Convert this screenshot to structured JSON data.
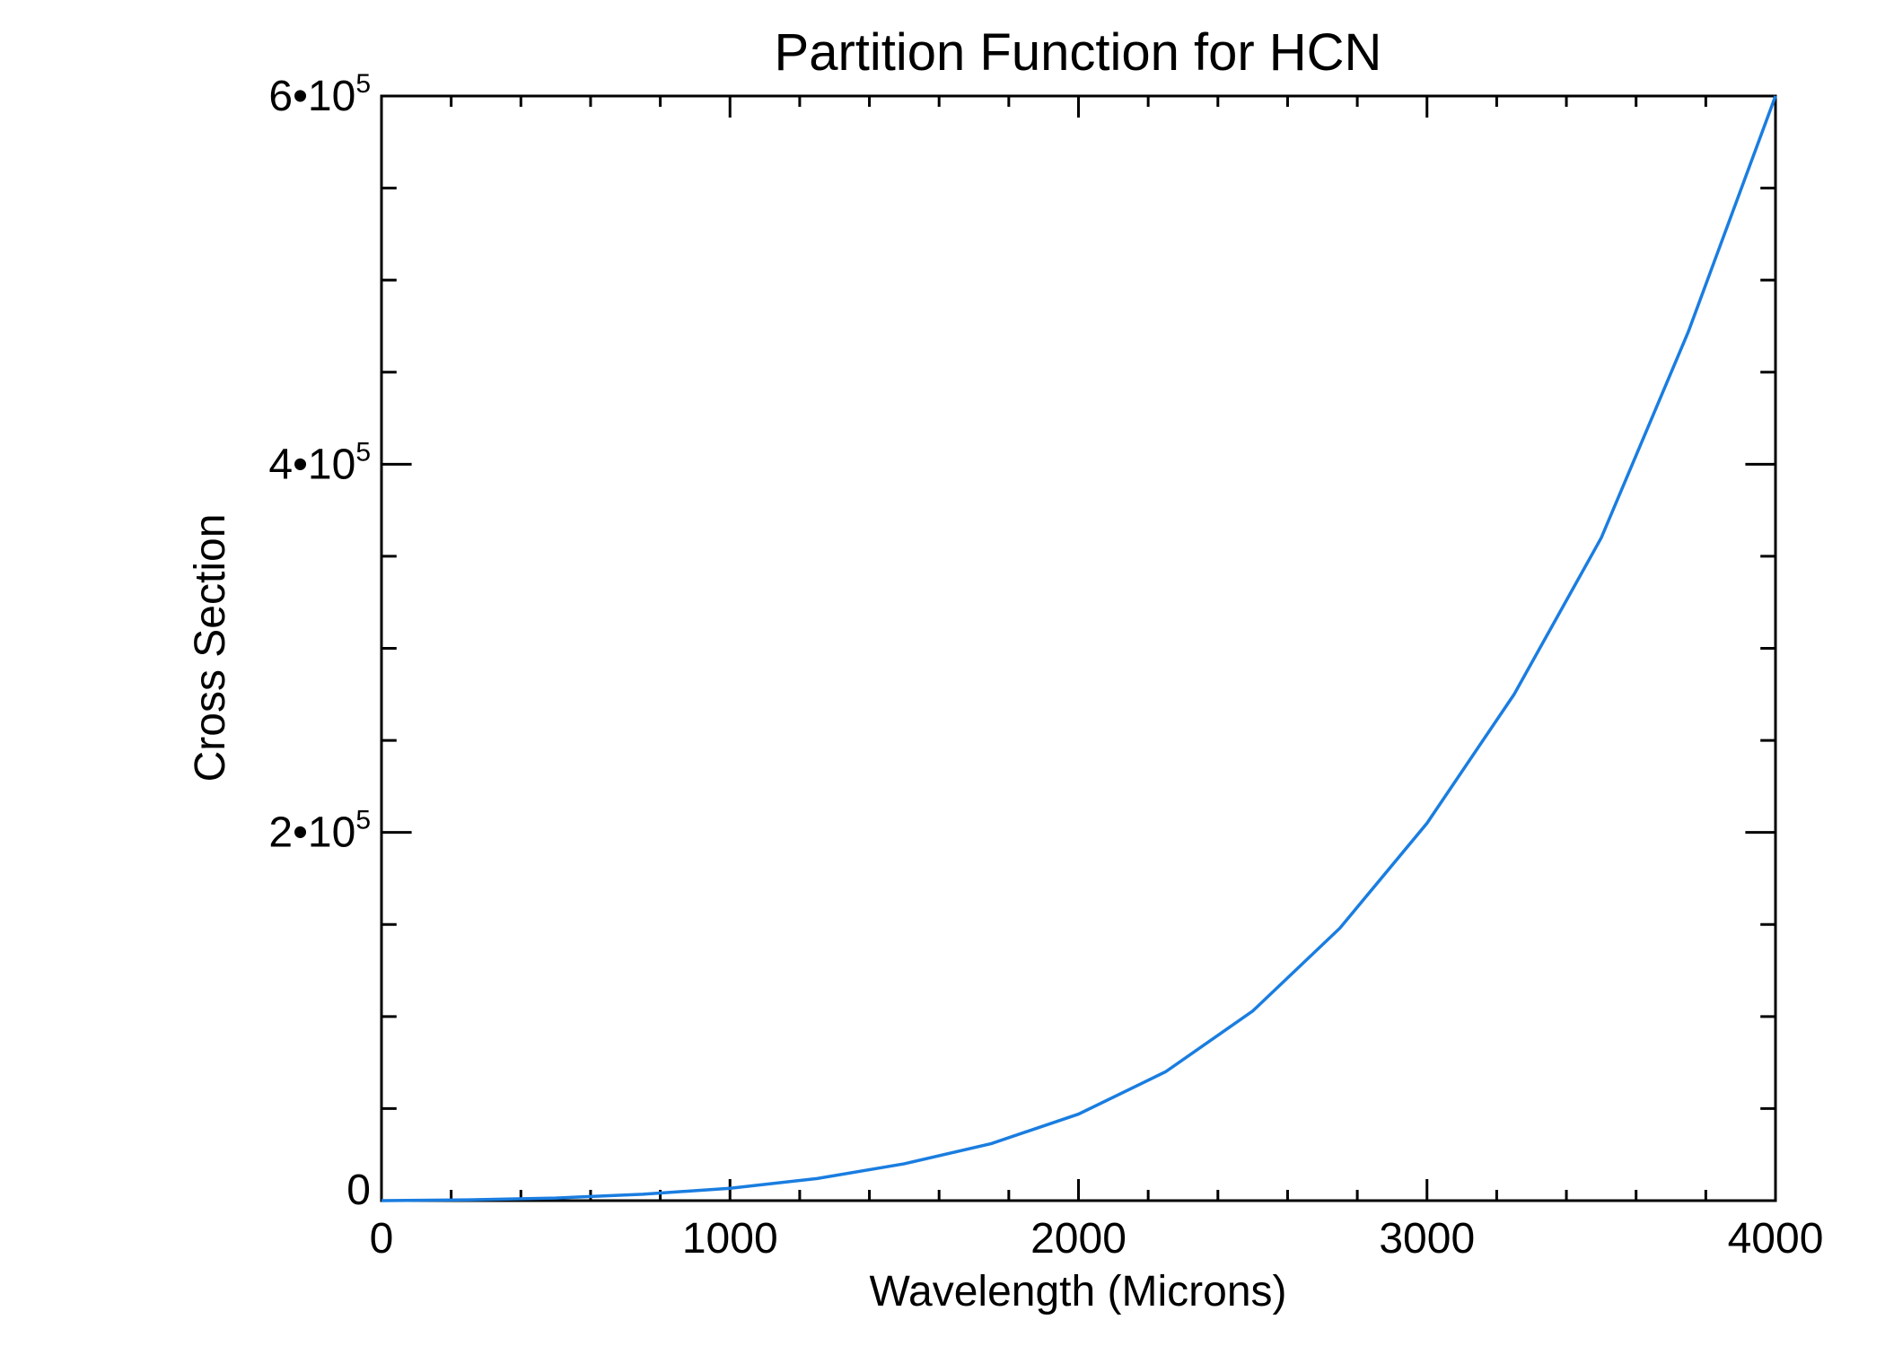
{
  "chart_data": {
    "type": "line",
    "title": "Partition Function for HCN",
    "xlabel": "Wavelength (Microns)",
    "ylabel": "Cross Section",
    "xlim": [
      0,
      4000
    ],
    "ylim": [
      0,
      600000
    ],
    "x_ticks": [
      {
        "value": 0,
        "label": "0"
      },
      {
        "value": 1000,
        "label": "1000"
      },
      {
        "value": 2000,
        "label": "2000"
      },
      {
        "value": 3000,
        "label": "3000"
      },
      {
        "value": 4000,
        "label": "4000"
      }
    ],
    "y_ticks": [
      {
        "value": 0,
        "mantissa": "0",
        "exponent": ""
      },
      {
        "value": 200000,
        "mantissa": "2•10",
        "exponent": "5"
      },
      {
        "value": 400000,
        "mantissa": "4•10",
        "exponent": "5"
      },
      {
        "value": 600000,
        "mantissa": "6•10",
        "exponent": "5"
      }
    ],
    "x_minor_step": 200,
    "y_minor_step": 50000,
    "grid": false,
    "line_color": "#1a7de0",
    "series": [
      {
        "x": [
          0,
          250,
          500,
          750,
          1000,
          1250,
          1500,
          1750,
          2000,
          2250,
          2500,
          2750,
          3000,
          3250,
          3500,
          3750,
          4000
        ],
        "values": [
          0,
          400,
          1400,
          3500,
          6700,
          12000,
          20000,
          31000,
          47000,
          70000,
          103000,
          148000,
          205000,
          275000,
          360000,
          472000,
          600000
        ]
      }
    ]
  }
}
